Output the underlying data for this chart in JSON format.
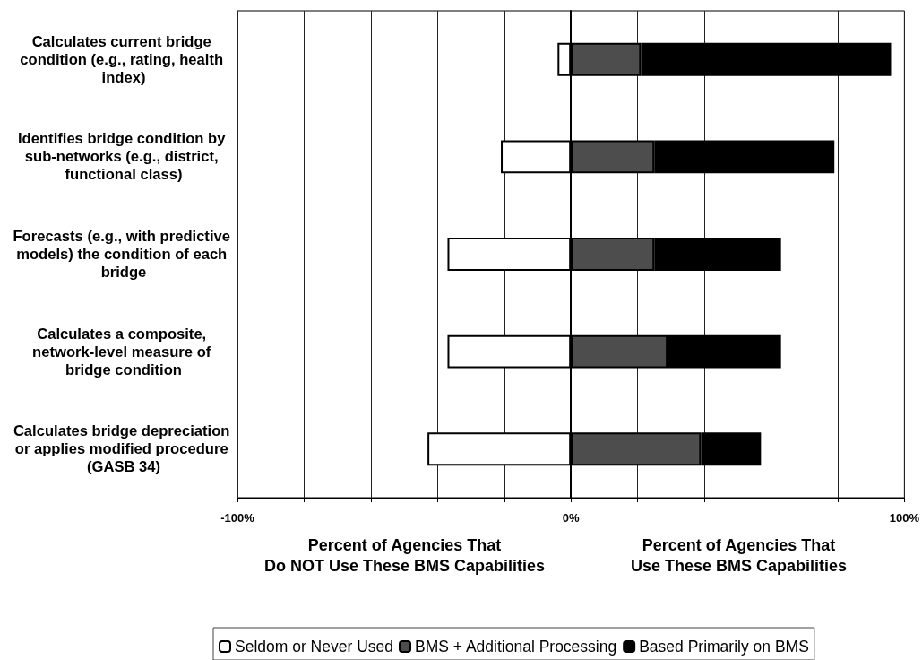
{
  "chart_data": {
    "type": "bar",
    "orientation": "horizontal",
    "stacked": true,
    "categories": [
      "Calculates current bridge condition (e.g., rating, health index)",
      "Identifies bridge condition by sub-networks (e.g., district, functional class)",
      "Forecasts (e.g., with predictive models) the condition of each bridge",
      "Calculates a composite, network-level measure of bridge condition",
      "Calculates bridge depreciation or applies modified procedure (GASB 34)"
    ],
    "series": [
      {
        "name": "Seldom or Never Used",
        "color": "#ffffff",
        "values": [
          -4,
          -21,
          -37,
          -37,
          -43
        ]
      },
      {
        "name": "BMS + Additional Processing",
        "color": "#4d4d4d",
        "values": [
          21,
          25,
          25,
          29,
          39
        ]
      },
      {
        "name": "Based Primarily on BMS",
        "color": "#000000",
        "values": [
          75,
          54,
          38,
          34,
          18
        ]
      }
    ],
    "xlim": [
      -100,
      100
    ],
    "xticks": [
      {
        "value": -100,
        "label": "-100%"
      },
      {
        "value": -80,
        "label": null
      },
      {
        "value": -60,
        "label": null
      },
      {
        "value": -40,
        "label": null
      },
      {
        "value": -20,
        "label": null
      },
      {
        "value": 0,
        "label": "0%"
      },
      {
        "value": 20,
        "label": null
      },
      {
        "value": 40,
        "label": null
      },
      {
        "value": 60,
        "label": null
      },
      {
        "value": 80,
        "label": null
      },
      {
        "value": 100,
        "label": "100%"
      }
    ],
    "grid": "x",
    "legend": "bottom",
    "annotations": [
      "Percent of Agencies That\nDo NOT Use These BMS Capabilities",
      "Percent of Agencies That\nUse These BMS Capabilities"
    ]
  }
}
